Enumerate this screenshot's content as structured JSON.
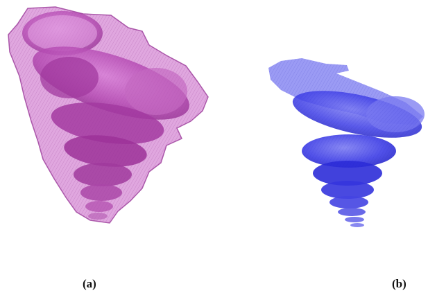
{
  "figure": {
    "panels": [
      {
        "label": "(a)",
        "color": "#b23ab0",
        "description_icon": "shell-volume-render-magenta"
      },
      {
        "label": "(b)",
        "color": "#3b3be0",
        "description_icon": "shell-volume-render-blue"
      }
    ]
  }
}
